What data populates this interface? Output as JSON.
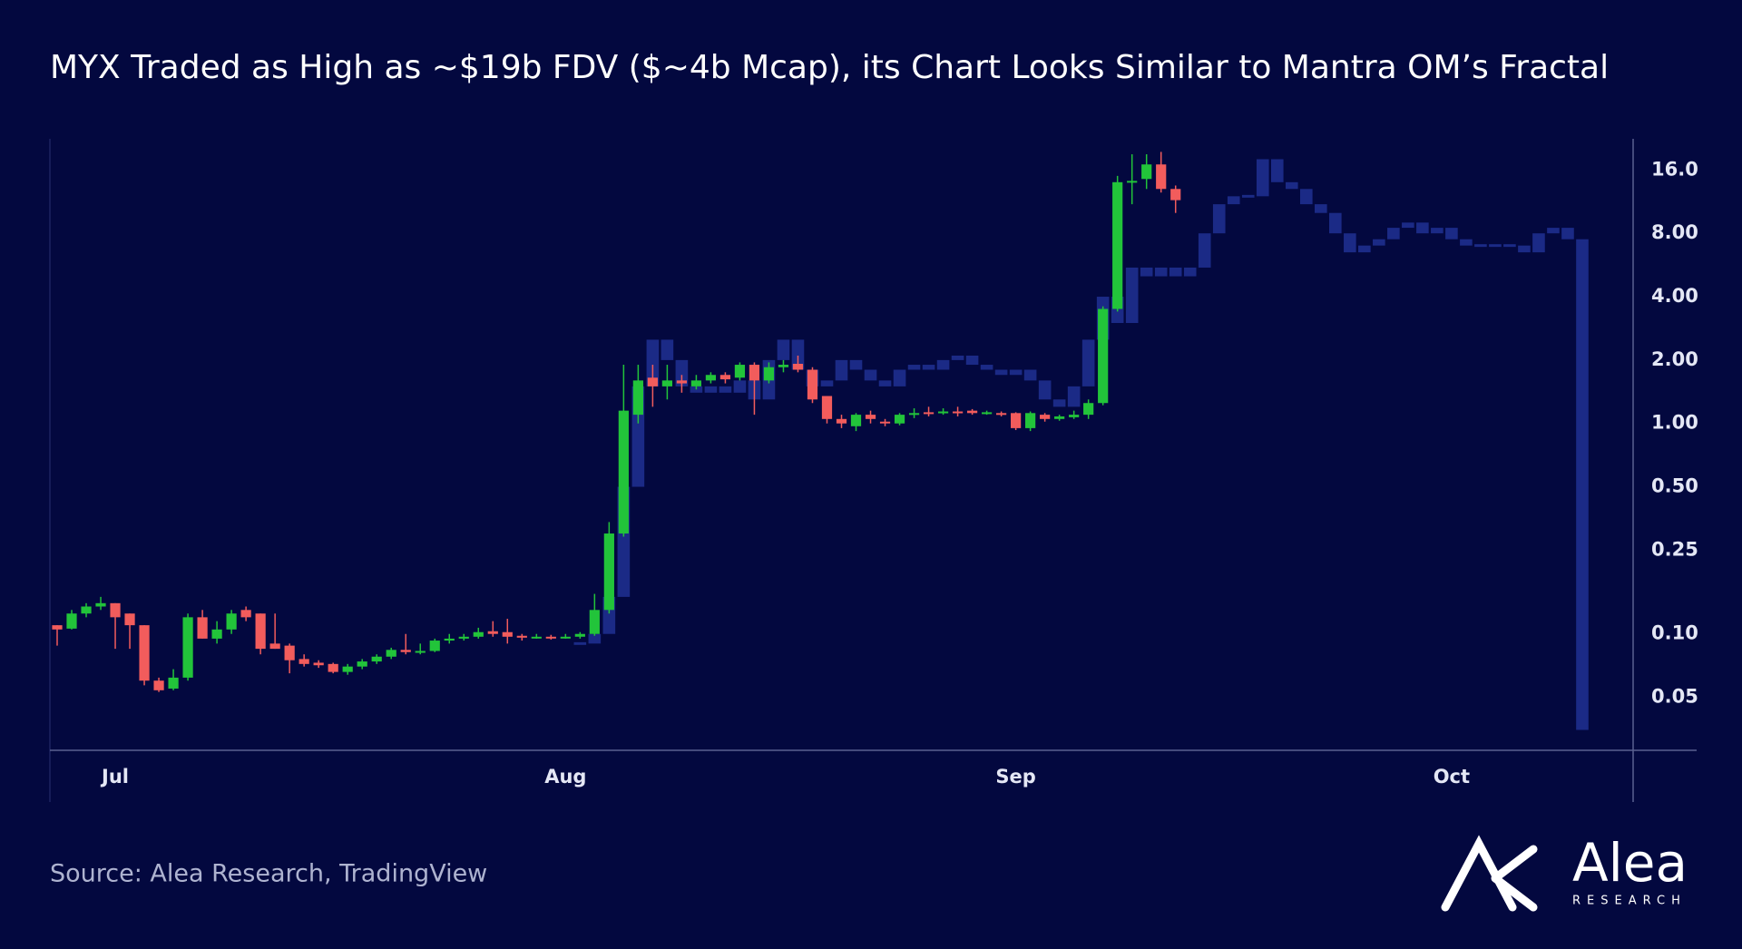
{
  "chart_data": {
    "type": "candlestick",
    "title": "MYX Traded as High as ~$19b FDV ($~4b Mcap), its Chart Looks Similar to Mantra OM’s Fractal",
    "source": "Source: Alea Research, TradingView",
    "logo": {
      "name": "Alea",
      "tagline": "RESEARCH"
    },
    "log_scale": true,
    "up_color": "#22c43a",
    "down_color": "#f25c5c",
    "ylim": [
      0.028,
      22.5
    ],
    "yticks": [
      {
        "value": 16,
        "label": "16.0"
      },
      {
        "value": 8,
        "label": "8.00"
      },
      {
        "value": 4,
        "label": "4.00"
      },
      {
        "value": 2,
        "label": "2.00"
      },
      {
        "value": 1,
        "label": "1.00"
      },
      {
        "value": 0.5,
        "label": "0.50"
      },
      0.25,
      {
        "value": 0.1,
        "label": "0.10"
      },
      0.05
    ],
    "categories": [
      null,
      null,
      null,
      null,
      "Jul",
      null,
      null,
      null,
      null,
      null,
      null,
      null,
      null,
      null,
      null,
      null,
      null,
      null,
      null,
      null,
      null,
      null,
      null,
      null,
      null,
      null,
      null,
      null,
      null,
      null,
      null,
      null,
      null,
      null,
      null,
      "Aug",
      null,
      null,
      null,
      null,
      null,
      null,
      null,
      null,
      null,
      null,
      null,
      null,
      null,
      null,
      null,
      null,
      null,
      null,
      null,
      null,
      null,
      null,
      null,
      null,
      null,
      null,
      null,
      null,
      null,
      null,
      "Sep",
      null,
      null,
      null,
      null,
      null,
      null,
      null,
      null,
      null,
      null,
      null,
      null,
      null,
      null,
      null,
      null,
      null,
      null,
      null,
      null,
      null,
      null,
      null,
      null,
      null,
      null,
      null,
      null,
      null,
      "Oct",
      null,
      null,
      null,
      null,
      null,
      null,
      null,
      null,
      null,
      null,
      null,
      null
    ],
    "open": [
      0.11,
      0.106,
      0.125,
      0.135,
      0.14,
      0.125,
      0.11,
      0.06,
      0.055,
      0.062,
      0.12,
      0.095,
      0.105,
      0.13,
      0.125,
      0.09,
      0.088,
      0.076,
      0.073,
      0.072,
      0.066,
      0.07,
      0.074,
      0.078,
      0.084,
      0.082,
      0.083,
      0.093,
      0.095,
      0.097,
      0.103,
      0.102,
      0.098,
      0.096,
      0.097,
      0.096,
      0.097,
      0.1,
      0.13,
      0.3,
      1.1,
      1.65,
      1.5,
      1.6,
      1.5,
      1.6,
      1.7,
      1.65,
      1.9,
      1.6,
      1.85,
      1.92,
      1.8,
      1.35,
      1.05,
      0.97,
      1.1,
      1.02,
      1.0,
      1.1,
      1.13,
      1.12,
      1.14,
      1.15,
      1.12,
      1.12,
      1.12,
      0.95,
      1.1,
      1.05,
      1.07,
      1.1,
      1.25,
      3.5,
      14,
      14.5,
      17,
      13,
      null,
      null,
      null,
      null,
      null,
      null,
      null,
      null,
      null,
      null,
      null,
      null,
      null,
      null,
      null,
      null,
      null,
      null,
      null,
      null,
      null,
      null,
      null,
      null,
      null,
      null,
      null,
      null,
      null,
      null,
      null
    ],
    "high": [
      0.11,
      0.13,
      0.14,
      0.15,
      0.14,
      0.125,
      0.11,
      0.062,
      0.068,
      0.125,
      0.13,
      0.115,
      0.13,
      0.135,
      0.125,
      0.125,
      0.09,
      0.08,
      0.075,
      0.073,
      0.072,
      0.076,
      0.08,
      0.086,
      0.1,
      0.09,
      0.095,
      0.1,
      0.1,
      0.107,
      0.115,
      0.118,
      0.1,
      0.1,
      0.099,
      0.1,
      0.102,
      0.155,
      0.34,
      1.9,
      1.9,
      1.9,
      1.9,
      1.7,
      1.7,
      1.75,
      1.75,
      1.95,
      1.95,
      1.95,
      2.0,
      2.1,
      1.85,
      1.35,
      1.1,
      1.12,
      1.15,
      1.05,
      1.12,
      1.18,
      1.2,
      1.18,
      1.2,
      1.17,
      1.15,
      1.14,
      1.13,
      1.14,
      1.12,
      1.1,
      1.15,
      1.3,
      3.6,
      15,
      19,
      19,
      19.5,
      13.5,
      null,
      null,
      null,
      null,
      null,
      null,
      null,
      null,
      null,
      null,
      null,
      null,
      null,
      null,
      null,
      null,
      null,
      null,
      null,
      null,
      null,
      null,
      null,
      null,
      null,
      null,
      null,
      null,
      null,
      null,
      null
    ],
    "low": [
      0.088,
      0.105,
      0.12,
      0.13,
      0.085,
      0.085,
      0.057,
      0.053,
      0.054,
      0.06,
      0.095,
      0.09,
      0.1,
      0.115,
      0.08,
      0.085,
      0.065,
      0.07,
      0.069,
      0.065,
      0.064,
      0.068,
      0.072,
      0.076,
      0.08,
      0.08,
      0.082,
      0.09,
      0.093,
      0.095,
      0.097,
      0.09,
      0.093,
      0.095,
      0.094,
      0.095,
      0.095,
      0.098,
      0.125,
      0.29,
      1.0,
      1.2,
      1.3,
      1.4,
      1.45,
      1.55,
      1.55,
      1.6,
      1.1,
      1.55,
      1.75,
      1.75,
      1.25,
      1.0,
      0.95,
      0.92,
      1.0,
      0.97,
      0.98,
      1.06,
      1.08,
      1.1,
      1.08,
      1.1,
      1.1,
      1.08,
      0.93,
      0.92,
      1.02,
      1.03,
      1.05,
      1.05,
      1.22,
      3.4,
      11,
      13,
      12.5,
      10,
      null,
      null,
      null,
      null,
      null,
      null,
      null,
      null,
      null,
      null,
      null,
      null,
      null,
      null,
      null,
      null,
      null,
      null,
      null,
      null,
      null,
      null,
      null,
      null,
      null,
      null,
      null,
      null,
      null,
      null,
      null
    ],
    "close": [
      0.105,
      0.125,
      0.135,
      0.14,
      0.12,
      0.11,
      0.06,
      0.054,
      0.062,
      0.12,
      0.095,
      0.105,
      0.125,
      0.12,
      0.085,
      0.085,
      0.075,
      0.072,
      0.071,
      0.066,
      0.07,
      0.074,
      0.078,
      0.084,
      0.082,
      0.083,
      0.093,
      0.095,
      0.097,
      0.102,
      0.1,
      0.097,
      0.096,
      0.097,
      0.096,
      0.097,
      0.1,
      0.13,
      0.3,
      1.15,
      1.6,
      1.5,
      1.6,
      1.55,
      1.6,
      1.7,
      1.62,
      1.9,
      1.6,
      1.85,
      1.9,
      1.8,
      1.3,
      1.05,
      1.0,
      1.1,
      1.05,
      1.0,
      1.1,
      1.12,
      1.12,
      1.14,
      1.12,
      1.12,
      1.13,
      1.1,
      0.95,
      1.12,
      1.05,
      1.08,
      1.1,
      1.25,
      3.5,
      14,
      14.2,
      17,
      13,
      11.5,
      null,
      null,
      null,
      null,
      null,
      null,
      null,
      null,
      null,
      null,
      null,
      null,
      null,
      null,
      null,
      null,
      null,
      null,
      null,
      null,
      null,
      null,
      null,
      null,
      null,
      null,
      null,
      null,
      null,
      null,
      null
    ],
    "background_series": {
      "color": "#1b2a86",
      "values": [
        null,
        null,
        null,
        null,
        null,
        null,
        null,
        null,
        null,
        null,
        null,
        null,
        null,
        null,
        null,
        null,
        null,
        null,
        null,
        null,
        null,
        null,
        null,
        null,
        null,
        null,
        null,
        null,
        null,
        null,
        null,
        null,
        null,
        null,
        null,
        null,
        0.09,
        0.1,
        0.15,
        0.5,
        1.5,
        2.5,
        2.0,
        1.5,
        1.4,
        1.5,
        1.4,
        1.6,
        1.3,
        2.0,
        2.5,
        1.8,
        1.5,
        1.6,
        2.0,
        1.8,
        1.6,
        1.5,
        1.8,
        1.9,
        1.8,
        2.0,
        2.1,
        1.9,
        1.8,
        1.7,
        1.8,
        1.6,
        1.3,
        1.2,
        1.5,
        2.5,
        4.0,
        3.0,
        5.5,
        5.0,
        5.5,
        5.0,
        5.5,
        8,
        11,
        12,
        12,
        18,
        14,
        13,
        11,
        10,
        8,
        6.5,
        7,
        7.5,
        8.5,
        9,
        8,
        8.5,
        7.5,
        7,
        7,
        7,
        7,
        6.5,
        8,
        8.5,
        7.5,
        0.035,
        null,
        null,
        null
      ]
    }
  }
}
